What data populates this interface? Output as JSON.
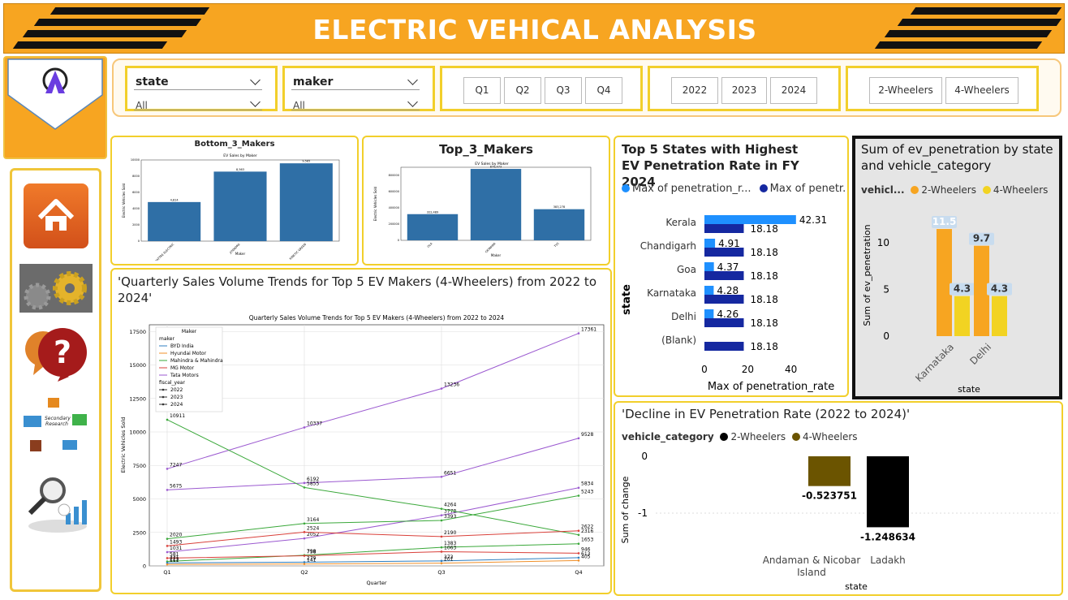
{
  "header": {
    "title": "ELECTRIC VEHICAL ANALYSIS"
  },
  "filters": {
    "state": {
      "label": "state",
      "value": "All"
    },
    "maker": {
      "label": "maker",
      "value": "All"
    },
    "quarters": [
      "Q1",
      "Q2",
      "Q3",
      "Q4"
    ],
    "years": [
      "2022",
      "2023",
      "2024"
    ],
    "categories": [
      "2-Wheelers",
      "4-Wheelers"
    ]
  },
  "nav": {
    "icons": [
      "home-icon",
      "research-gears-icon",
      "help-question-icon",
      "research-infographic-icon",
      "analytics-magnifier-icon"
    ],
    "infographic_text": "Secondary Research"
  },
  "colors": {
    "accent": "#f7a521",
    "border": "#f2cf2b",
    "bar_blue": "#2f6fa6",
    "light_blue": "#1e90ff",
    "dark_blue": "#1528a0",
    "orange": "#f7a521",
    "yellow": "#f2d322",
    "olive": "#6b5400"
  },
  "bottom3": {
    "title": "Bottom_3_Makers",
    "chart_data": {
      "type": "bar",
      "title": "EV Sales by Maker",
      "xlabel": "Maker",
      "ylabel": "Electric Vehicles Sold",
      "categories": [
        "BATTRE ELECTRIC",
        "JITENDRA",
        "KINETIC GREEN"
      ],
      "values": [
        4814,
        8563,
        9585
      ],
      "value_labels": [
        "4,814",
        "8,563",
        "9,585"
      ],
      "ylim": [
        0,
        10000
      ],
      "yticks": [
        "0",
        "2000",
        "4000",
        "6000",
        "8000",
        "10000"
      ]
    }
  },
  "top3": {
    "title": "Top_3_Makers",
    "chart_data": {
      "type": "bar",
      "title": "EV Sales by Maker",
      "xlabel": "Maker",
      "ylabel": "Electric Vehicles Sold",
      "categories": [
        "OLA",
        "OKINAWA",
        "TVS"
      ],
      "values": [
        322489,
        879473,
        383278
      ],
      "value_labels": [
        "322,489",
        "879,473",
        "383,278"
      ],
      "ylim": [
        0,
        900000
      ],
      "yticks": [
        "0",
        "200000",
        "400000",
        "600000",
        "800000"
      ]
    }
  },
  "quarterly": {
    "title": "'Quarterly Sales Volume Trends for Top 5 EV Makers (4-Wheelers) from 2022 to 2024'",
    "chart_data": {
      "type": "line",
      "title": "Quarterly Sales Volume Trends for Top 5 EV Makers (4-Wheelers) from 2022 to 2024",
      "xlabel": "Quarter",
      "ylabel": "Electric Vehicles Sold",
      "categories": [
        "Q1",
        "Q2",
        "Q3",
        "Q4"
      ],
      "ylim": [
        0,
        17500
      ],
      "yticks": [
        "0",
        "2500",
        "5000",
        "7500",
        "10000",
        "12500",
        "15000",
        "17500"
      ],
      "legend": {
        "title": "Maker",
        "group1": "maker",
        "group2": "fiscal_year",
        "makers": [
          "BYD India",
          "Hyundai Motor",
          "Mahindra & Mahindra",
          "MG Motor",
          "Tata Motors"
        ],
        "years": [
          "2022",
          "2023",
          "2024"
        ]
      },
      "series": [
        {
          "name": "Tata Motors",
          "year": "2024",
          "color": "#9b59d0",
          "values": [
            7247,
            10337,
            13236,
            17361
          ]
        },
        {
          "name": "Tata Motors",
          "year": "2023",
          "color": "#9b59d0",
          "values": [
            5675,
            6192,
            6651,
            9528
          ]
        },
        {
          "name": "Tata Motors",
          "year": "2022",
          "color": "#9b59d0",
          "values": [
            1031,
            2052,
            3778,
            5834
          ]
        },
        {
          "name": "Mahindra & Mahindra",
          "year": "2024",
          "color": "#3aa83a",
          "values": [
            10911,
            5855,
            4264,
            2316
          ]
        },
        {
          "name": "Mahindra & Mahindra",
          "year": "2023",
          "color": "#3aa83a",
          "values": [
            2020,
            3164,
            3393,
            5243
          ]
        },
        {
          "name": "Mahindra & Mahindra",
          "year": "2022",
          "color": "#3aa83a",
          "values": [
            331,
            798,
            1383,
            1653
          ]
        },
        {
          "name": "MG Motor",
          "year": "2024",
          "color": "#d9403a",
          "values": [
            1493,
            2524,
            2190,
            2622
          ]
        },
        {
          "name": "MG Motor",
          "year": "2023",
          "color": "#d9403a",
          "values": [
            581,
            758,
            1063,
            946
          ]
        },
        {
          "name": "BYD India",
          "year": "2024",
          "color": "#2f7fc0",
          "values": [
            223,
            279,
            373,
            613
          ]
        },
        {
          "name": "Hyundai Motor",
          "year": "2024",
          "color": "#f0902a",
          "values": [
            111,
            141,
            201,
            405
          ]
        }
      ]
    }
  },
  "top5": {
    "title": "Top 5 States with Highest EV Penetration Rate in FY 2024",
    "legend": [
      "Max of penetration_r...",
      "Max of penetr..."
    ],
    "chart_data": {
      "type": "bar",
      "orientation": "horizontal",
      "ylabel": "state",
      "xlabel": "Max of penetration_rate",
      "categories": [
        "Kerala",
        "Chandigarh",
        "Goa",
        "Karnataka",
        "Delhi",
        "(Blank)"
      ],
      "series": [
        {
          "name": "Max of penetration_rate",
          "values": [
            42.31,
            4.91,
            4.37,
            4.28,
            4.26,
            null
          ]
        },
        {
          "name": "Max of penetration_rate",
          "values": [
            18.18,
            18.18,
            18.18,
            18.18,
            18.18,
            18.18
          ]
        }
      ],
      "xlim": [
        0,
        45
      ],
      "xticks": [
        "0",
        "20",
        "40"
      ],
      "labels_a": [
        "42.31",
        "4.91",
        "4.37",
        "4.28",
        "4.26",
        ""
      ],
      "labels_b": [
        "18.18",
        "18.18",
        "18.18",
        "18.18",
        "18.18",
        "18.18"
      ]
    }
  },
  "evpen": {
    "title": "Sum of ev_penetration by state and vehicle_category",
    "legend_title": "vehicl...",
    "legend": [
      "2-Wheelers",
      "4-Wheelers"
    ],
    "chart_data": {
      "type": "bar",
      "xlabel": "state",
      "ylabel": "Sum of ev_penetration",
      "categories": [
        "Karnataka",
        "Delhi"
      ],
      "series": [
        {
          "name": "2-Wheelers",
          "values": [
            11.5,
            9.7
          ]
        },
        {
          "name": "4-Wheelers",
          "values": [
            4.3,
            4.3
          ]
        }
      ],
      "ylim": [
        0,
        12
      ],
      "yticks": [
        "0",
        "5",
        "10"
      ],
      "labels": [
        [
          "11.5",
          "4.3"
        ],
        [
          "9.7",
          "4.3"
        ]
      ]
    }
  },
  "decline": {
    "title": "'Decline in EV Penetration Rate (2022 to 2024)'",
    "legend_title": "vehicle_category",
    "legend": [
      "2-Wheelers",
      "4-Wheelers"
    ],
    "chart_data": {
      "type": "bar",
      "xlabel": "state",
      "ylabel": "Sum of change",
      "categories": [
        "Andaman & Nicobar Island",
        "Ladakh"
      ],
      "cat_lines": [
        [
          "Andaman & Nicobar",
          "Island"
        ],
        [
          "Ladakh"
        ]
      ],
      "series": [
        {
          "name": "4-Wheelers",
          "values": [
            -0.523751,
            null
          ]
        },
        {
          "name": "2-Wheelers",
          "values": [
            null,
            -1.248634
          ]
        }
      ],
      "labels": [
        "-0.523751",
        "-1.248634"
      ],
      "ylim": [
        -1.5,
        0
      ],
      "yticks": [
        "0",
        "-1"
      ]
    }
  }
}
